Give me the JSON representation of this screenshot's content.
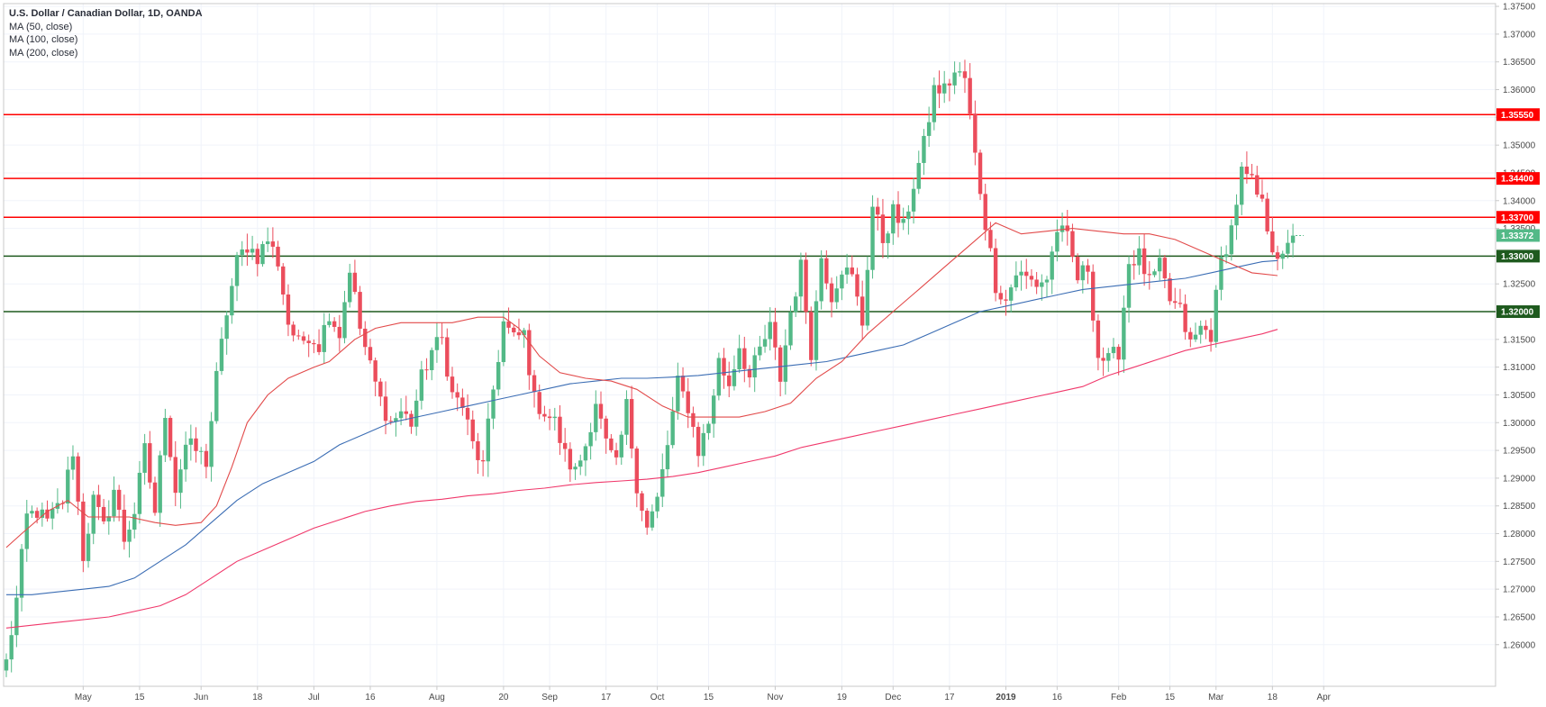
{
  "legend": {
    "title": "U.S. Dollar / Canadian Dollar, 1D, OANDA",
    "lines": [
      "MA (50, close)",
      "MA (100, close)",
      "MA (200, close)"
    ]
  },
  "colors": {
    "bull": "#53b987",
    "bear": "#eb4d5c",
    "resistance": "#ff0000",
    "support": "#1e5a1e",
    "ma50": "#e24a4a",
    "ma100": "#3b6db4",
    "ma200": "#f0386b",
    "grid": "#f0f3fa",
    "axis": "#c8c8c8"
  },
  "chart_data": {
    "type": "candlestick",
    "title": "U.S. Dollar / Canadian Dollar, 1D, OANDA",
    "ylim": [
      1.2525,
      1.3755
    ],
    "yticks": [
      "1.37500",
      "1.37000",
      "1.36500",
      "1.36000",
      "1.35500",
      "1.35000",
      "1.34500",
      "1.34000",
      "1.33500",
      "1.33000",
      "1.32500",
      "1.32000",
      "1.31500",
      "1.31000",
      "1.30500",
      "1.30000",
      "1.29500",
      "1.29000",
      "1.28500",
      "1.28000",
      "1.27500",
      "1.27000",
      "1.26500",
      "1.26000"
    ],
    "xticks": [
      {
        "label": "May",
        "d": 15
      },
      {
        "label": "15",
        "d": 26
      },
      {
        "label": "Jun",
        "d": 38
      },
      {
        "label": "18",
        "d": 49
      },
      {
        "label": "Jul",
        "d": 60
      },
      {
        "label": "16",
        "d": 71
      },
      {
        "label": "Aug",
        "d": 84
      },
      {
        "label": "20",
        "d": 97
      },
      {
        "label": "Sep",
        "d": 106
      },
      {
        "label": "17",
        "d": 117
      },
      {
        "label": "Oct",
        "d": 127
      },
      {
        "label": "15",
        "d": 137
      },
      {
        "label": "Nov",
        "d": 150
      },
      {
        "label": "19",
        "d": 163
      },
      {
        "label": "Dec",
        "d": 173
      },
      {
        "label": "17",
        "d": 184
      },
      {
        "label": "2019",
        "d": 195
      },
      {
        "label": "16",
        "d": 205
      },
      {
        "label": "Feb",
        "d": 217
      },
      {
        "label": "15",
        "d": 227
      },
      {
        "label": "Mar",
        "d": 236
      },
      {
        "label": "18",
        "d": 247
      },
      {
        "label": "Apr",
        "d": 257
      }
    ],
    "levels": [
      {
        "value": 1.3555,
        "label": "1.35550",
        "kind": "resistance"
      },
      {
        "value": 1.344,
        "label": "1.34400",
        "kind": "resistance"
      },
      {
        "value": 1.337,
        "label": "1.33700",
        "kind": "resistance"
      },
      {
        "value": 1.33,
        "label": "1.33000",
        "kind": "support"
      },
      {
        "value": 1.32,
        "label": "1.32000",
        "kind": "support"
      }
    ],
    "last_price": {
      "value": 1.33372,
      "label": "1.33372"
    },
    "ohlc_keyframes": [
      [
        0,
        1.2568
      ],
      [
        2,
        1.268
      ],
      [
        4,
        1.283
      ],
      [
        6,
        1.284
      ],
      [
        8,
        1.282
      ],
      [
        11,
        1.286
      ],
      [
        13,
        1.295
      ],
      [
        15,
        1.276
      ],
      [
        17,
        1.286
      ],
      [
        19,
        1.281
      ],
      [
        21,
        1.288
      ],
      [
        23,
        1.279
      ],
      [
        25,
        1.284
      ],
      [
        27,
        1.295
      ],
      [
        29,
        1.284
      ],
      [
        31,
        1.302
      ],
      [
        33,
        1.288
      ],
      [
        35,
        1.296
      ],
      [
        37,
        1.295
      ],
      [
        39,
        1.293
      ],
      [
        41,
        1.308
      ],
      [
        43,
        1.32
      ],
      [
        45,
        1.329
      ],
      [
        47,
        1.332
      ],
      [
        49,
        1.33
      ],
      [
        51,
        1.333
      ],
      [
        53,
        1.329
      ],
      [
        55,
        1.318
      ],
      [
        57,
        1.314
      ],
      [
        59,
        1.316
      ],
      [
        61,
        1.314
      ],
      [
        63,
        1.32
      ],
      [
        65,
        1.316
      ],
      [
        67,
        1.328
      ],
      [
        69,
        1.317
      ],
      [
        71,
        1.31
      ],
      [
        73,
        1.304
      ],
      [
        75,
        1.3
      ],
      [
        77,
        1.302
      ],
      [
        79,
        1.3
      ],
      [
        81,
        1.308
      ],
      [
        83,
        1.313
      ],
      [
        85,
        1.315
      ],
      [
        87,
        1.305
      ],
      [
        89,
        1.303
      ],
      [
        91,
        1.296
      ],
      [
        93,
        1.292
      ],
      [
        95,
        1.306
      ],
      [
        97,
        1.318
      ],
      [
        99,
        1.315
      ],
      [
        101,
        1.316
      ],
      [
        103,
        1.304
      ],
      [
        105,
        1.302
      ],
      [
        107,
        1.3
      ],
      [
        109,
        1.294
      ],
      [
        111,
        1.291
      ],
      [
        113,
        1.296
      ],
      [
        115,
        1.304
      ],
      [
        117,
        1.296
      ],
      [
        119,
        1.292
      ],
      [
        121,
        1.303
      ],
      [
        123,
        1.289
      ],
      [
        125,
        1.281
      ],
      [
        127,
        1.286
      ],
      [
        129,
        1.296
      ],
      [
        131,
        1.307
      ],
      [
        133,
        1.303
      ],
      [
        135,
        1.295
      ],
      [
        137,
        1.3
      ],
      [
        139,
        1.311
      ],
      [
        141,
        1.307
      ],
      [
        143,
        1.314
      ],
      [
        145,
        1.308
      ],
      [
        147,
        1.313
      ],
      [
        149,
        1.317
      ],
      [
        151,
        1.308
      ],
      [
        153,
        1.32
      ],
      [
        155,
        1.328
      ],
      [
        157,
        1.313
      ],
      [
        159,
        1.33
      ],
      [
        161,
        1.323
      ],
      [
        163,
        1.328
      ],
      [
        165,
        1.326
      ],
      [
        167,
        1.318
      ],
      [
        169,
        1.339
      ],
      [
        171,
        1.333
      ],
      [
        173,
        1.338
      ],
      [
        175,
        1.335
      ],
      [
        177,
        1.343
      ],
      [
        179,
        1.35
      ],
      [
        181,
        1.36
      ],
      [
        183,
        1.36
      ],
      [
        185,
        1.363
      ],
      [
        187,
        1.362
      ],
      [
        189,
        1.348
      ],
      [
        191,
        1.336
      ],
      [
        193,
        1.325
      ],
      [
        195,
        1.322
      ],
      [
        197,
        1.327
      ],
      [
        199,
        1.326
      ],
      [
        201,
        1.325
      ],
      [
        203,
        1.326
      ],
      [
        205,
        1.335
      ],
      [
        207,
        1.333
      ],
      [
        209,
        1.326
      ],
      [
        211,
        1.328
      ],
      [
        213,
        1.312
      ],
      [
        215,
        1.311
      ],
      [
        217,
        1.313
      ],
      [
        219,
        1.329
      ],
      [
        221,
        1.33
      ],
      [
        223,
        1.325
      ],
      [
        225,
        1.328
      ],
      [
        227,
        1.322
      ],
      [
        229,
        1.32
      ],
      [
        231,
        1.314
      ],
      [
        233,
        1.317
      ],
      [
        235,
        1.316
      ],
      [
        237,
        1.329
      ],
      [
        239,
        1.335
      ],
      [
        241,
        1.345
      ],
      [
        243,
        1.343
      ],
      [
        245,
        1.339
      ],
      [
        247,
        1.332
      ],
      [
        249,
        1.329
      ],
      [
        251,
        1.3337
      ]
    ],
    "ma50": [
      [
        0,
        1.2775
      ],
      [
        3,
        1.28
      ],
      [
        8,
        1.284
      ],
      [
        12,
        1.286
      ],
      [
        16,
        1.283
      ],
      [
        20,
        1.283
      ],
      [
        24,
        1.283
      ],
      [
        29,
        1.282
      ],
      [
        33,
        1.2815
      ],
      [
        38,
        1.282
      ],
      [
        41,
        1.285
      ],
      [
        44,
        1.292
      ],
      [
        47,
        1.3
      ],
      [
        51,
        1.305
      ],
      [
        55,
        1.308
      ],
      [
        60,
        1.31
      ],
      [
        63,
        1.311
      ],
      [
        68,
        1.315
      ],
      [
        72,
        1.317
      ],
      [
        77,
        1.318
      ],
      [
        82,
        1.318
      ],
      [
        87,
        1.318
      ],
      [
        92,
        1.319
      ],
      [
        97,
        1.319
      ],
      [
        100,
        1.317
      ],
      [
        104,
        1.312
      ],
      [
        108,
        1.309
      ],
      [
        113,
        1.308
      ],
      [
        118,
        1.3075
      ],
      [
        123,
        1.306
      ],
      [
        128,
        1.303
      ],
      [
        133,
        1.301
      ],
      [
        138,
        1.301
      ],
      [
        143,
        1.301
      ],
      [
        148,
        1.302
      ],
      [
        153,
        1.3035
      ],
      [
        158,
        1.308
      ],
      [
        163,
        1.311
      ],
      [
        168,
        1.316
      ],
      [
        173,
        1.32
      ],
      [
        178,
        1.324
      ],
      [
        183,
        1.328
      ],
      [
        188,
        1.332
      ],
      [
        193,
        1.336
      ],
      [
        198,
        1.334
      ],
      [
        203,
        1.3345
      ],
      [
        208,
        1.335
      ],
      [
        213,
        1.3345
      ],
      [
        218,
        1.334
      ],
      [
        223,
        1.334
      ],
      [
        228,
        1.333
      ],
      [
        233,
        1.331
      ],
      [
        238,
        1.329
      ],
      [
        243,
        1.327
      ],
      [
        248,
        1.3265
      ]
    ],
    "ma100": [
      [
        0,
        1.269
      ],
      [
        5,
        1.269
      ],
      [
        10,
        1.2695
      ],
      [
        15,
        1.27
      ],
      [
        20,
        1.2705
      ],
      [
        25,
        1.272
      ],
      [
        30,
        1.275
      ],
      [
        35,
        1.278
      ],
      [
        40,
        1.282
      ],
      [
        45,
        1.286
      ],
      [
        50,
        1.289
      ],
      [
        55,
        1.291
      ],
      [
        60,
        1.293
      ],
      [
        65,
        1.296
      ],
      [
        70,
        1.298
      ],
      [
        75,
        1.3
      ],
      [
        80,
        1.301
      ],
      [
        85,
        1.302
      ],
      [
        90,
        1.303
      ],
      [
        95,
        1.304
      ],
      [
        100,
        1.305
      ],
      [
        105,
        1.306
      ],
      [
        110,
        1.307
      ],
      [
        115,
        1.3075
      ],
      [
        120,
        1.308
      ],
      [
        125,
        1.308
      ],
      [
        130,
        1.3082
      ],
      [
        135,
        1.3085
      ],
      [
        140,
        1.309
      ],
      [
        145,
        1.3095
      ],
      [
        150,
        1.31
      ],
      [
        155,
        1.3105
      ],
      [
        160,
        1.311
      ],
      [
        165,
        1.312
      ],
      [
        170,
        1.313
      ],
      [
        175,
        1.314
      ],
      [
        180,
        1.316
      ],
      [
        185,
        1.318
      ],
      [
        190,
        1.32
      ],
      [
        195,
        1.321
      ],
      [
        200,
        1.322
      ],
      [
        205,
        1.323
      ],
      [
        210,
        1.324
      ],
      [
        215,
        1.3245
      ],
      [
        220,
        1.325
      ],
      [
        225,
        1.3255
      ],
      [
        230,
        1.326
      ],
      [
        235,
        1.327
      ],
      [
        240,
        1.328
      ],
      [
        245,
        1.329
      ],
      [
        248,
        1.3292
      ]
    ],
    "ma200": [
      [
        0,
        1.263
      ],
      [
        10,
        1.264
      ],
      [
        20,
        1.265
      ],
      [
        30,
        1.267
      ],
      [
        35,
        1.269
      ],
      [
        40,
        1.272
      ],
      [
        45,
        1.275
      ],
      [
        50,
        1.277
      ],
      [
        55,
        1.279
      ],
      [
        60,
        1.281
      ],
      [
        65,
        1.2825
      ],
      [
        70,
        1.284
      ],
      [
        75,
        1.285
      ],
      [
        80,
        1.2858
      ],
      [
        85,
        1.2862
      ],
      [
        90,
        1.2868
      ],
      [
        95,
        1.2872
      ],
      [
        100,
        1.2878
      ],
      [
        105,
        1.2882
      ],
      [
        110,
        1.2888
      ],
      [
        115,
        1.2892
      ],
      [
        120,
        1.2895
      ],
      [
        125,
        1.2898
      ],
      [
        130,
        1.2903
      ],
      [
        135,
        1.291
      ],
      [
        140,
        1.292
      ],
      [
        145,
        1.293
      ],
      [
        150,
        1.294
      ],
      [
        155,
        1.2955
      ],
      [
        160,
        1.2965
      ],
      [
        165,
        1.2975
      ],
      [
        170,
        1.2985
      ],
      [
        175,
        1.2995
      ],
      [
        180,
        1.3005
      ],
      [
        185,
        1.3015
      ],
      [
        190,
        1.3025
      ],
      [
        195,
        1.3035
      ],
      [
        200,
        1.3045
      ],
      [
        205,
        1.3055
      ],
      [
        210,
        1.3065
      ],
      [
        215,
        1.3085
      ],
      [
        220,
        1.31
      ],
      [
        225,
        1.3115
      ],
      [
        230,
        1.313
      ],
      [
        235,
        1.314
      ],
      [
        240,
        1.315
      ],
      [
        245,
        1.316
      ],
      [
        248,
        1.3168
      ]
    ]
  }
}
